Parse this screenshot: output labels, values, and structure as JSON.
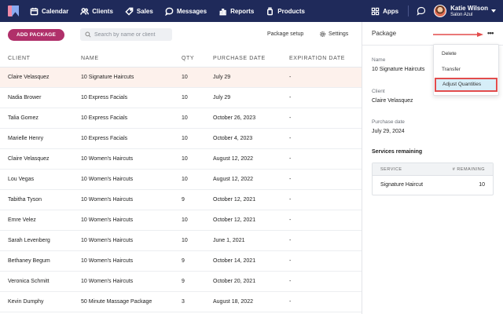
{
  "nav": {
    "items": [
      {
        "label": "Calendar",
        "icon": "calendar-icon"
      },
      {
        "label": "Clients",
        "icon": "clients-icon"
      },
      {
        "label": "Sales",
        "icon": "tag-icon"
      },
      {
        "label": "Messages",
        "icon": "messages-icon"
      },
      {
        "label": "Reports",
        "icon": "reports-icon"
      },
      {
        "label": "Products",
        "icon": "products-icon"
      }
    ],
    "apps_label": "Apps",
    "user_name": "Katie Wilson",
    "user_salon": "Salon Azul"
  },
  "toolbar": {
    "add_label": "ADD PACKAGE",
    "search_placeholder": "Search by name or client",
    "setup_label": "Package setup",
    "settings_label": "Settings"
  },
  "table": {
    "headers": [
      "CLIENT",
      "NAME",
      "QTY",
      "PURCHASE DATE",
      "EXPIRATION DATE"
    ],
    "rows": [
      {
        "client": "Claire Velasquez",
        "name": "10 Signature Haircuts",
        "qty": "10",
        "purchase": "July 29",
        "expiration": "-"
      },
      {
        "client": "Nadia Brower",
        "name": "10 Express Facials",
        "qty": "10",
        "purchase": "July 29",
        "expiration": "-"
      },
      {
        "client": "Talia Gomez",
        "name": "10 Express Facials",
        "qty": "10",
        "purchase": "October 26, 2023",
        "expiration": "-"
      },
      {
        "client": "Marielle Henry",
        "name": "10 Express Facials",
        "qty": "10",
        "purchase": "October 4, 2023",
        "expiration": "-"
      },
      {
        "client": "Claire Velasquez",
        "name": "10 Women's Haircuts",
        "qty": "10",
        "purchase": "August 12, 2022",
        "expiration": "-"
      },
      {
        "client": "Lou Vegas",
        "name": "10 Women's Haircuts",
        "qty": "10",
        "purchase": "August 12, 2022",
        "expiration": "-"
      },
      {
        "client": "Tabitha Tyson",
        "name": "10 Women's Haircuts",
        "qty": "9",
        "purchase": "October 12, 2021",
        "expiration": "-"
      },
      {
        "client": "Emre Velez",
        "name": "10 Women's Haircuts",
        "qty": "10",
        "purchase": "October 12, 2021",
        "expiration": "-"
      },
      {
        "client": "Sarah Levenberg",
        "name": "10 Women's Haircuts",
        "qty": "10",
        "purchase": "June 1, 2021",
        "expiration": "-"
      },
      {
        "client": "Bethaney Begum",
        "name": "10 Women's Haircuts",
        "qty": "9",
        "purchase": "October 14, 2021",
        "expiration": "-"
      },
      {
        "client": "Veronica Schmitt",
        "name": "10 Women's Haircuts",
        "qty": "9",
        "purchase": "October 20, 2021",
        "expiration": "-"
      },
      {
        "client": "Kevin Dumphy",
        "name": "50 Minute Massage Package",
        "qty": "3",
        "purchase": "August 18, 2022",
        "expiration": "-"
      }
    ]
  },
  "panel": {
    "title": "Package",
    "more_label": "•••",
    "name_label": "Name",
    "name_value": "10 Signature Haircuts",
    "client_label": "Client",
    "client_value": "Claire Velasquez",
    "date_label": "Purchase date",
    "date_value": "July 29, 2024",
    "services_title": "Services remaining",
    "services_header_service": "SERVICE",
    "services_header_remaining": "# REMAINING",
    "services": [
      {
        "name": "Signature Haircut",
        "remaining": "10"
      }
    ]
  },
  "menu": {
    "items": [
      "Delete",
      "Transfer",
      "Adjust Quantities"
    ]
  },
  "colors": {
    "nav_bg": "#1f2a5a",
    "accent": "#b0306a",
    "highlight_border": "#e34c4c",
    "selected_row": "#fdf1ec"
  }
}
